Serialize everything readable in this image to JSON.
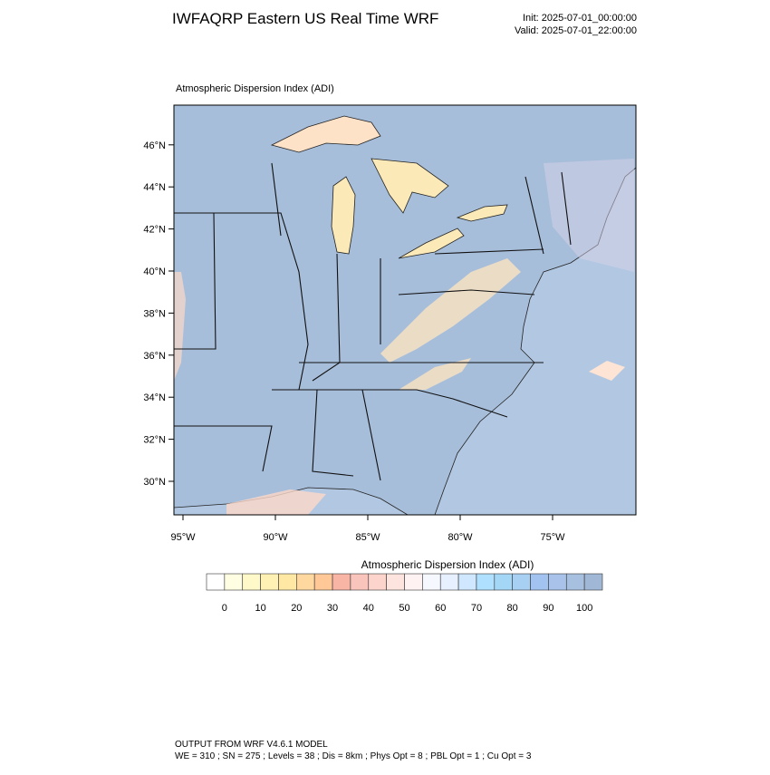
{
  "header": {
    "title": "IWFAQRP Eastern US Real Time WRF",
    "init": "Init: 2025-07-01_00:00:00",
    "valid": "Valid: 2025-07-01_22:00:00"
  },
  "map": {
    "title": "Atmospheric Dispersion Index   (ADI)",
    "lat_labels": [
      "30°N",
      "32°N",
      "34°N",
      "36°N",
      "38°N",
      "40°N",
      "42°N",
      "44°N",
      "46°N"
    ],
    "lon_labels": [
      "95°W",
      "90°W",
      "85°W",
      "80°W",
      "75°W"
    ]
  },
  "colorbar": {
    "title": "Atmospheric Dispersion Index  (ADI)",
    "ticks": [
      0,
      10,
      20,
      30,
      40,
      50,
      60,
      70,
      80,
      90,
      100
    ],
    "colors": [
      "#ffffff",
      "#fffde2",
      "#fff8c8",
      "#fff0b4",
      "#ffe8a4",
      "#ffd8a0",
      "#ffc896",
      "#f8b4a4",
      "#f8c4bc",
      "#fcd4cc",
      "#fde4de",
      "#fff2f2",
      "#f6f8ff",
      "#e6f0ff",
      "#cfe8ff",
      "#b0e0ff",
      "#a4d6f6",
      "#a8d0f2",
      "#a2c2f0",
      "#a8c2ea",
      "#a8c0e0",
      "#a0b8d6"
    ]
  },
  "footer": {
    "line1": "OUTPUT FROM WRF V4.6.1 MODEL",
    "line2": "WE = 310 ; SN = 275 ; Levels = 38 ; Dis = 8km ; Phys Opt = 8 ; PBL Opt = 1 ; Cu Opt = 3"
  }
}
